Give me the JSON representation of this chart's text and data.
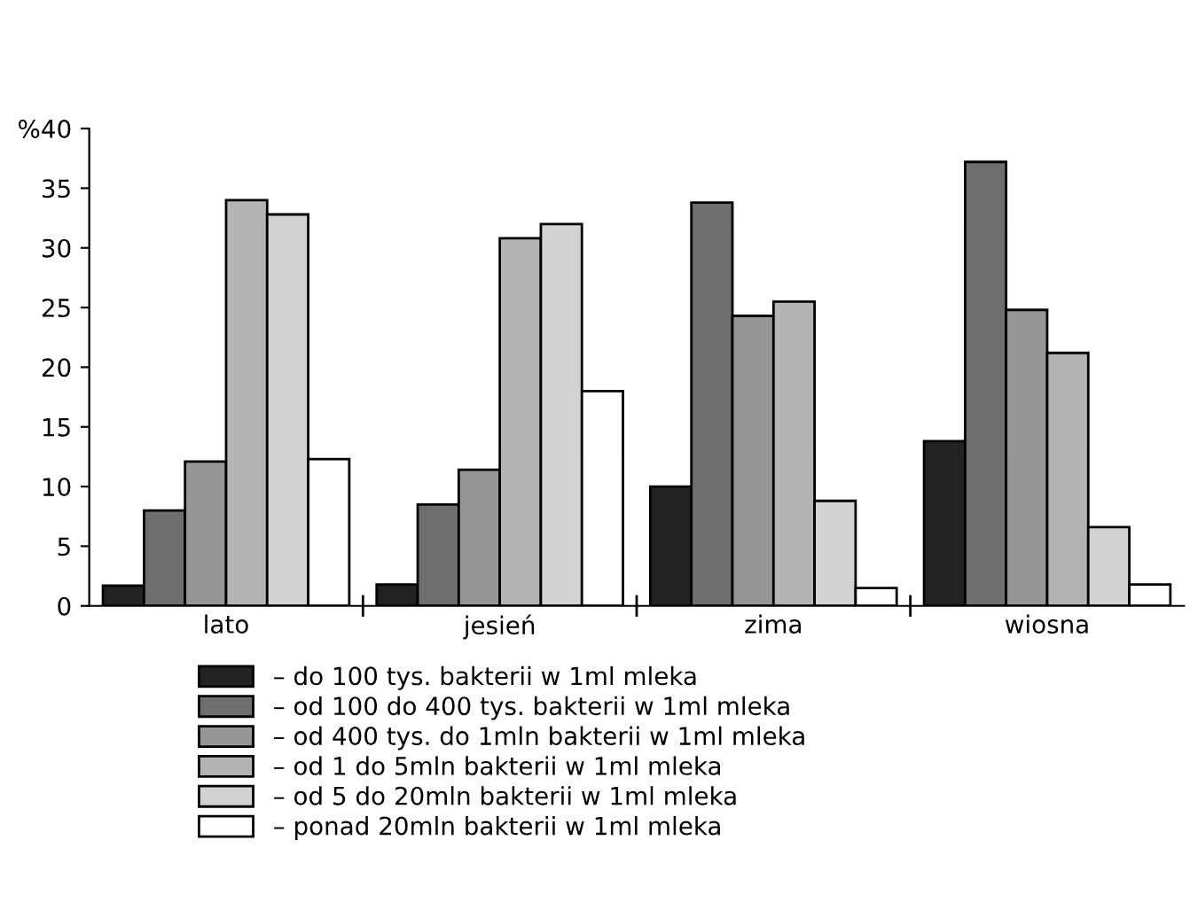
{
  "chart_data": {
    "type": "bar",
    "categories": [
      "lato",
      "jesień",
      "zima",
      "wiosna"
    ],
    "series": [
      {
        "name": "– do 100 tys. bakterii w 1ml mleka",
        "color": "#222222",
        "values": [
          1.7,
          1.8,
          10,
          13.8
        ]
      },
      {
        "name": "– od 100 do 400 tys. bakterii w 1ml mleka",
        "color": "#6e6e6e",
        "values": [
          8,
          8.5,
          33.8,
          37.2
        ]
      },
      {
        "name": "– od 400 tys. do 1mln bakterii w 1ml mleka",
        "color": "#969696",
        "values": [
          12.1,
          11.4,
          24.3,
          24.8
        ]
      },
      {
        "name": "– od 1 do 5mln bakterii w 1ml mleka",
        "color": "#b4b4b4",
        "values": [
          34,
          30.8,
          25.5,
          21.2
        ]
      },
      {
        "name": "– od 5 do 20mln bakterii w 1ml mleka",
        "color": "#d2d2d2",
        "values": [
          32.8,
          32,
          8.8,
          6.6
        ]
      },
      {
        "name": "– ponad 20mln bakterii w 1ml mleka",
        "color": "#ffffff",
        "values": [
          12.3,
          18,
          1.5,
          1.8
        ]
      }
    ],
    "ylim": [
      0,
      40
    ],
    "yticks": [
      0,
      5,
      10,
      15,
      20,
      25,
      30,
      35,
      {
        "value": 40,
        "label": "%40"
      }
    ],
    "grid": false,
    "legend": "bottom"
  }
}
